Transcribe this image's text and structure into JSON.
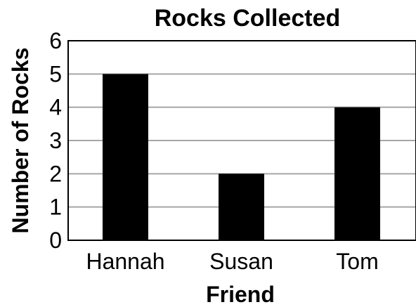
{
  "chart_data": {
    "type": "bar",
    "title": "Rocks Collected",
    "xlabel": "Friend",
    "ylabel": "Number of Rocks",
    "categories": [
      "Hannah",
      "Susan",
      "Tom"
    ],
    "values": [
      5,
      2,
      4
    ],
    "ylim": [
      0,
      6
    ],
    "yticks": [
      0,
      1,
      2,
      3,
      4,
      5,
      6
    ],
    "grid": true,
    "legend": "none",
    "colors": {
      "bar": "#000000",
      "grid": "#a6a6a6",
      "frame": "#000000"
    }
  }
}
